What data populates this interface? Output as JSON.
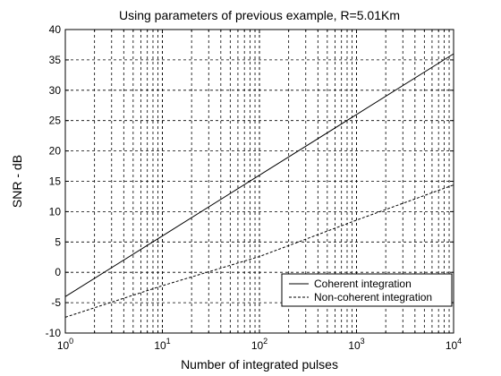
{
  "chart_data": {
    "type": "line",
    "title": "Using parameters of previous example, R=5.01Km",
    "xlabel": "Number of integrated pulses",
    "ylabel": "SNR - dB",
    "xscale": "log",
    "xlim": [
      1,
      10000
    ],
    "ylim": [
      -10,
      40
    ],
    "grid": true,
    "grid_style": "dashed",
    "legend_placement": "lower-right",
    "x_ticks": [
      {
        "base": "10",
        "exp": "0"
      },
      {
        "base": "10",
        "exp": "1"
      },
      {
        "base": "10",
        "exp": "2"
      },
      {
        "base": "10",
        "exp": "3"
      },
      {
        "base": "10",
        "exp": "4"
      }
    ],
    "y_ticks": [
      "-10",
      "-5",
      "0",
      "5",
      "10",
      "15",
      "20",
      "25",
      "30",
      "35",
      "40"
    ],
    "series": [
      {
        "name": "Coherent integration",
        "line_style": "solid",
        "color": "#000000",
        "x": [
          1,
          10,
          100,
          1000,
          10000
        ],
        "y": [
          -4,
          6,
          16,
          26,
          36
        ]
      },
      {
        "name": "Non-coherent integration",
        "line_style": "dashed",
        "color": "#000000",
        "x": [
          1,
          10,
          100,
          1000,
          10000
        ],
        "y": [
          -7.4,
          -2.2,
          2.6,
          8.6,
          14.4
        ]
      }
    ]
  }
}
